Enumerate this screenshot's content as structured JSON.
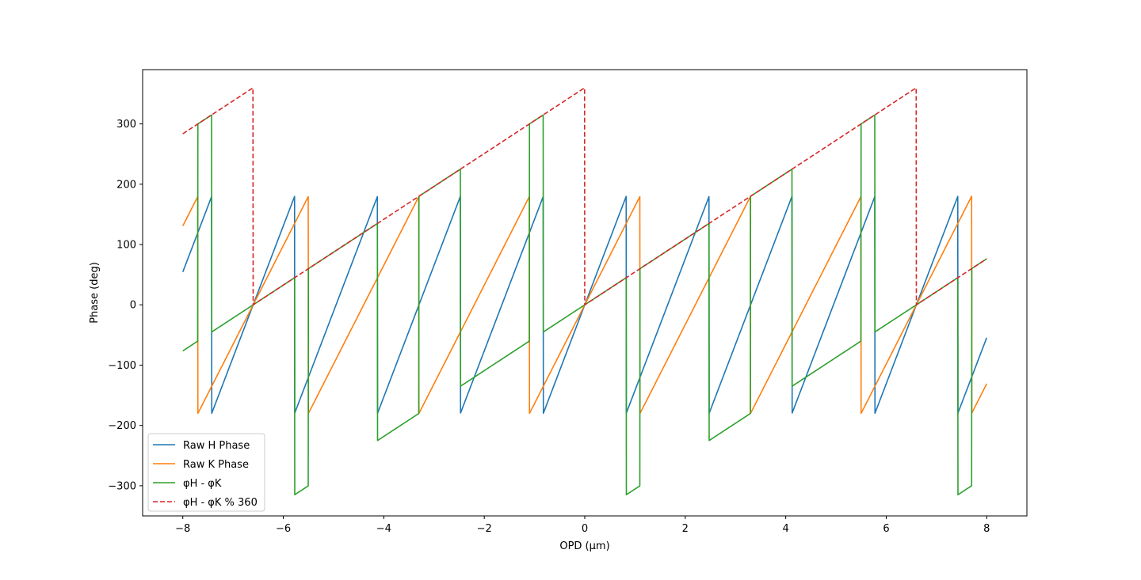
{
  "chart_data": {
    "type": "line",
    "title": "",
    "xlabel": "OPD (μm)",
    "ylabel": "Phase (deg)",
    "xlim": [
      -8.8,
      8.8
    ],
    "ylim": [
      -350,
      390
    ],
    "xticks": [
      -8,
      -6,
      -4,
      -2,
      0,
      2,
      4,
      6,
      8
    ],
    "xtick_labels": [
      "−8",
      "−6",
      "−4",
      "−2",
      "0",
      "2",
      "4",
      "6",
      "8"
    ],
    "yticks": [
      -300,
      -200,
      -100,
      0,
      100,
      200,
      300
    ],
    "ytick_labels": [
      "−300",
      "−200",
      "−100",
      "0",
      "100",
      "200",
      "300"
    ],
    "grid": false,
    "legend_position": "lower-left",
    "lambda_H_um": 1.65,
    "lambda_K_um": 2.2,
    "x_range": [
      -8,
      8
    ],
    "series": [
      {
        "name": "Raw H Phase",
        "key": "H",
        "color": "#1f77b4",
        "dash": "solid"
      },
      {
        "name": "Raw K Phase",
        "key": "K",
        "color": "#ff7f0e",
        "dash": "solid"
      },
      {
        "name": "φH - φK",
        "key": "diff",
        "color": "#2ca02c",
        "dash": "solid"
      },
      {
        "name": "φH - φK % 360",
        "key": "mod",
        "color": "#d62728",
        "dash": "dashed"
      }
    ]
  }
}
